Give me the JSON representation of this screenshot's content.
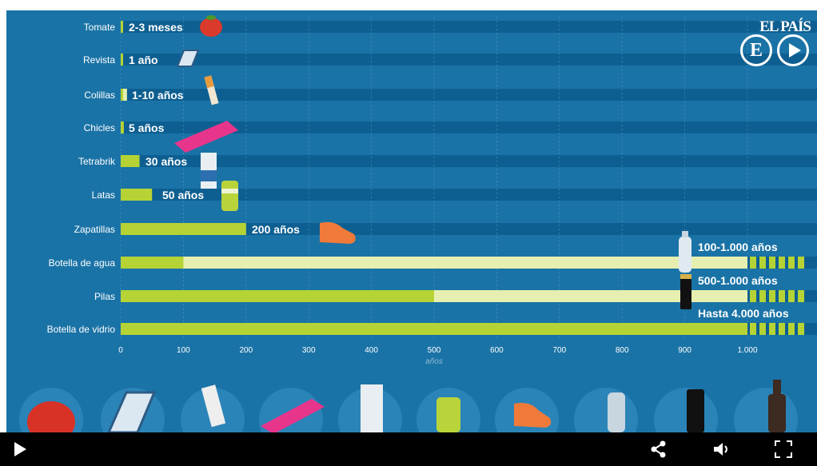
{
  "brand": {
    "name": "EL PAÍS",
    "logo_letter": "E"
  },
  "controls": {
    "play_icon": "play-icon",
    "share_icon": "share-icon",
    "volume_icon": "volume-icon",
    "fullscreen_icon": "fullscreen-icon"
  },
  "colors": {
    "background": "#1a73a6",
    "track": "#0e5f91",
    "bar": "#b5d334",
    "bar_light": "#e6efb0",
    "controls_bg": "#000000"
  },
  "chart_data": {
    "type": "bar",
    "orientation": "horizontal",
    "categories": [
      "Tomate",
      "Revista",
      "Colillas",
      "Chicles",
      "Tetrabrik",
      "Latas",
      "Zapatillas",
      "Botella de agua",
      "Pilas",
      "Botella de vidrio"
    ],
    "value_labels": [
      "2-3 meses",
      "1 año",
      "1-10 años",
      "5 años",
      "30 años",
      "50 años",
      "200 años",
      "100-1.000 años",
      "500-1.000 años",
      "Hasta 4.000 años"
    ],
    "min_values": [
      0.2,
      1,
      1,
      5,
      30,
      50,
      200,
      100,
      500,
      4000
    ],
    "max_values": [
      0.25,
      1,
      10,
      5,
      30,
      50,
      200,
      1000,
      1000,
      4000
    ],
    "icons": [
      "tomato-icon",
      "magazine-icon",
      "cigarette-butt-icon",
      "chewing-gum-icon",
      "tetrabrik-icon",
      "can-icon",
      "sneaker-icon",
      "water-bottle-icon",
      "battery-icon",
      "glass-bottle-icon"
    ],
    "xlim": [
      0,
      1000
    ],
    "x_ticks": [
      "0",
      "100",
      "200",
      "300",
      "400",
      "500",
      "600",
      "700",
      "800",
      "900",
      "1.000"
    ],
    "xlabel": "años",
    "grid": true,
    "bottom_icons": [
      "tomato-icon",
      "magazine-icon",
      "cigarette-butt-icon",
      "chewing-gum-icon",
      "tetrabrik-icon",
      "can-icon",
      "sneaker-icon",
      "water-bottle-icon",
      "battery-icon",
      "glass-bottle-icon"
    ]
  }
}
